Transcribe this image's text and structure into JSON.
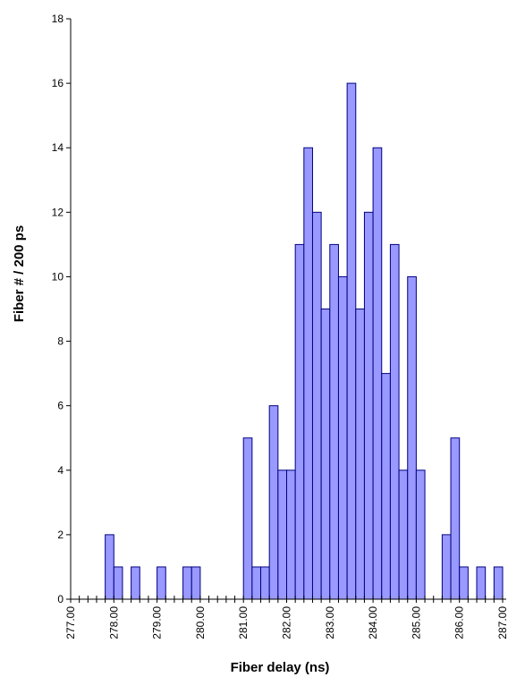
{
  "chart_data": {
    "type": "bar",
    "title": "",
    "xlabel": "Fiber delay (ns)",
    "ylabel": "Fiber # / 200 ps",
    "bin_width": 0.2,
    "xlim": [
      277.0,
      287.0
    ],
    "ylim": [
      0,
      18
    ],
    "y_ticks": [
      0,
      2,
      4,
      6,
      8,
      10,
      12,
      14,
      16,
      18
    ],
    "x_tick_labels": [
      "277.00",
      "278.00",
      "279.00",
      "280.00",
      "281.00",
      "282.00",
      "283.00",
      "284.00",
      "285.00",
      "286.00",
      "287.00"
    ],
    "x_tick_values": [
      277.0,
      278.0,
      279.0,
      280.0,
      281.0,
      282.0,
      283.0,
      284.0,
      285.0,
      286.0,
      287.0
    ],
    "grid": false,
    "bins": [
      {
        "x": 277.8,
        "y": 2
      },
      {
        "x": 278.0,
        "y": 1
      },
      {
        "x": 278.4,
        "y": 1
      },
      {
        "x": 279.0,
        "y": 1
      },
      {
        "x": 279.6,
        "y": 1
      },
      {
        "x": 279.8,
        "y": 1
      },
      {
        "x": 281.0,
        "y": 5
      },
      {
        "x": 281.2,
        "y": 1
      },
      {
        "x": 281.4,
        "y": 1
      },
      {
        "x": 281.6,
        "y": 6
      },
      {
        "x": 281.8,
        "y": 4
      },
      {
        "x": 282.0,
        "y": 4
      },
      {
        "x": 282.2,
        "y": 11
      },
      {
        "x": 282.4,
        "y": 14
      },
      {
        "x": 282.6,
        "y": 12
      },
      {
        "x": 282.8,
        "y": 9
      },
      {
        "x": 283.0,
        "y": 11
      },
      {
        "x": 283.2,
        "y": 10
      },
      {
        "x": 283.4,
        "y": 16
      },
      {
        "x": 283.6,
        "y": 9
      },
      {
        "x": 283.8,
        "y": 12
      },
      {
        "x": 284.0,
        "y": 14
      },
      {
        "x": 284.2,
        "y": 7
      },
      {
        "x": 284.4,
        "y": 11
      },
      {
        "x": 284.6,
        "y": 4
      },
      {
        "x": 284.8,
        "y": 10
      },
      {
        "x": 285.0,
        "y": 4
      },
      {
        "x": 285.6,
        "y": 2
      },
      {
        "x": 285.8,
        "y": 5
      },
      {
        "x": 286.0,
        "y": 1
      },
      {
        "x": 286.4,
        "y": 1
      },
      {
        "x": 286.8,
        "y": 1
      }
    ],
    "colors": {
      "bar_fill": "#9999ff",
      "bar_edge": "#000080"
    }
  }
}
